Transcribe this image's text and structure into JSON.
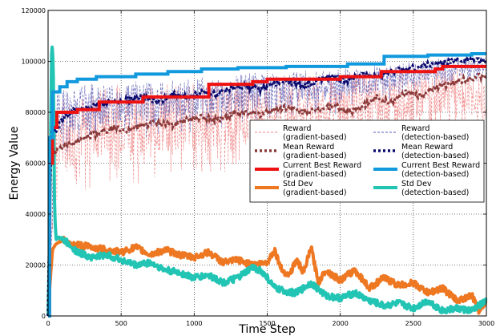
{
  "chart_data": {
    "type": "line",
    "title": "",
    "xlabel": "Time Step",
    "ylabel": "Energy Value",
    "xlim": [
      0,
      3000
    ],
    "ylim": [
      0,
      120000
    ],
    "xticks": [
      0,
      500,
      1000,
      1500,
      2000,
      2500,
      3000
    ],
    "yticks": [
      0,
      20000,
      40000,
      60000,
      80000,
      100000,
      120000
    ],
    "grid": true,
    "legend_position": "center-right",
    "series": [
      {
        "name": "Reward\n(gradient-based)",
        "color": "#f08080",
        "style": "dashed-noisy",
        "x": [
          0,
          50,
          100,
          200,
          300,
          400,
          500,
          600,
          700,
          800,
          900,
          1000,
          1100,
          1200,
          1300,
          1400,
          1500,
          1600,
          1700,
          1800,
          1900,
          2000,
          2100,
          2200,
          2300,
          2400,
          2500,
          2600,
          2700,
          2800,
          2900,
          3000
        ],
        "values": [
          0,
          72000,
          74000,
          76000,
          78000,
          79000,
          80000,
          80000,
          79000,
          80000,
          81000,
          81000,
          82000,
          82000,
          83000,
          83000,
          82000,
          84000,
          84000,
          85000,
          84000,
          84000,
          86000,
          87000,
          86000,
          88000,
          88000,
          89000,
          90000,
          90000,
          89000,
          88000
        ],
        "spread": [
          0,
          20000,
          20000,
          20000,
          20000,
          20000,
          20000,
          20000,
          20000,
          20000,
          20000,
          19000,
          19000,
          19000,
          18000,
          18000,
          18000,
          17000,
          17000,
          17000,
          16000,
          16000,
          16000,
          15000,
          15000,
          14000,
          14000,
          13000,
          12000,
          12000,
          12000,
          12000
        ]
      },
      {
        "name": "Reward\n(detection-based)",
        "color": "#5a5ab4",
        "style": "dashed-noisy",
        "x": [
          0,
          50,
          100,
          200,
          300,
          400,
          500,
          600,
          700,
          800,
          900,
          1000,
          1100,
          1200,
          1300,
          1400,
          1500,
          1600,
          1700,
          1800,
          1900,
          2000,
          2100,
          2200,
          2300,
          2400,
          2500,
          2600,
          2700,
          2800,
          2900,
          3000
        ],
        "values": [
          0,
          80000,
          82000,
          83000,
          84000,
          85000,
          86000,
          86000,
          85000,
          86000,
          87000,
          87000,
          88000,
          88000,
          89000,
          90000,
          89000,
          90000,
          91000,
          92000,
          91000,
          92000,
          93000,
          94000,
          95000,
          95000,
          96000,
          97000,
          98000,
          99000,
          99000,
          99000
        ],
        "spread": [
          0,
          14000,
          14000,
          13000,
          13000,
          12000,
          12000,
          12000,
          12000,
          11000,
          11000,
          11000,
          11000,
          10000,
          10000,
          10000,
          10000,
          10000,
          9000,
          9000,
          9000,
          9000,
          8000,
          8000,
          8000,
          7000,
          7000,
          6000,
          6000,
          5000,
          5000,
          5000
        ]
      },
      {
        "name": "Mean Reward\n(gradient-based)",
        "color": "#8b3a3a",
        "style": "dotted",
        "x": [
          0,
          10,
          20,
          30,
          50,
          80,
          150,
          250,
          350,
          450,
          550,
          650,
          750,
          850,
          950,
          1050,
          1150,
          1250,
          1350,
          1450,
          1550,
          1650,
          1750,
          1850,
          1950,
          2050,
          2150,
          2250,
          2350,
          2450,
          2550,
          2650,
          2750,
          2850,
          2950,
          3000
        ],
        "values": [
          0,
          40000,
          62000,
          66000,
          64000,
          66000,
          67000,
          70000,
          72000,
          74000,
          73000,
          75000,
          76000,
          75000,
          77000,
          78000,
          77000,
          79000,
          80000,
          79000,
          81000,
          82000,
          80000,
          81000,
          83000,
          80000,
          82000,
          86000,
          84000,
          88000,
          86000,
          90000,
          91000,
          93000,
          94000,
          94000
        ]
      },
      {
        "name": "Mean Reward\n(detection-based)",
        "color": "#0a0a6e",
        "style": "dotted",
        "x": [
          0,
          10,
          20,
          30,
          50,
          80,
          150,
          250,
          350,
          450,
          550,
          650,
          750,
          850,
          950,
          1050,
          1150,
          1250,
          1350,
          1450,
          1550,
          1650,
          1750,
          1850,
          1950,
          2050,
          2150,
          2250,
          2350,
          2450,
          2550,
          2650,
          2750,
          2850,
          2950,
          3000
        ],
        "values": [
          0,
          40000,
          70000,
          74000,
          72000,
          76000,
          80000,
          82000,
          83000,
          84000,
          85000,
          86000,
          84000,
          87000,
          86000,
          88000,
          87000,
          89000,
          90000,
          89000,
          91000,
          92000,
          90000,
          93000,
          94000,
          92000,
          95000,
          94000,
          96000,
          97000,
          98000,
          99000,
          100000,
          101000,
          100000,
          100000
        ]
      },
      {
        "name": "Current Best Reward\n(gradient-based)",
        "color": "#ee1111",
        "style": "step",
        "x": [
          0,
          10,
          30,
          60,
          200,
          350,
          650,
          1100,
          1400,
          1500,
          2000,
          2280,
          2650,
          2700,
          2800,
          3000
        ],
        "values": [
          0,
          60000,
          74000,
          80000,
          81000,
          84000,
          86000,
          91000,
          92000,
          93000,
          94000,
          96000,
          97000,
          98000,
          98000,
          98000
        ]
      },
      {
        "name": "Current Best Reward\n(detection-based)",
        "color": "#1199dd",
        "style": "step",
        "x": [
          0,
          10,
          30,
          80,
          130,
          200,
          330,
          600,
          820,
          1050,
          1300,
          1630,
          2050,
          2200,
          2250,
          2300,
          2600,
          2900,
          3000
        ],
        "values": [
          0,
          70000,
          88000,
          90000,
          92000,
          93000,
          94000,
          95000,
          96000,
          97000,
          97500,
          98000,
          99000,
          99000,
          99000,
          102000,
          102500,
          103000,
          103000
        ]
      },
      {
        "name": "Std Dev\n(gradient-based)",
        "color": "#ee7722",
        "style": "thick-noisy",
        "x": [
          0,
          10,
          30,
          50,
          100,
          150,
          200,
          300,
          400,
          500,
          600,
          700,
          800,
          900,
          1000,
          1100,
          1200,
          1300,
          1400,
          1500,
          1550,
          1600,
          1650,
          1700,
          1750,
          1800,
          1850,
          1900,
          2000,
          2100,
          2200,
          2300,
          2400,
          2500,
          2600,
          2700,
          2800,
          2900,
          2950,
          3000
        ],
        "values": [
          0,
          10000,
          26000,
          28000,
          30000,
          28000,
          28000,
          27000,
          26000,
          25000,
          27000,
          24000,
          26000,
          24000,
          23000,
          25000,
          21000,
          22000,
          20000,
          21000,
          26000,
          18000,
          16000,
          22000,
          17000,
          27000,
          13000,
          18000,
          14000,
          18000,
          11000,
          15000,
          12000,
          13000,
          9000,
          11000,
          6000,
          8000,
          2000,
          6000
        ]
      },
      {
        "name": "Std Dev\n(detection-based)",
        "color": "#22c4b4",
        "style": "thick-noisy",
        "x": [
          0,
          10,
          25,
          35,
          45,
          55,
          75,
          100,
          150,
          200,
          300,
          400,
          500,
          600,
          700,
          800,
          900,
          1000,
          1100,
          1200,
          1300,
          1400,
          1450,
          1500,
          1550,
          1600,
          1700,
          1800,
          1900,
          2000,
          2100,
          2200,
          2300,
          2400,
          2500,
          2600,
          2700,
          2800,
          2900,
          3000
        ],
        "values": [
          0,
          30000,
          108000,
          100000,
          40000,
          30000,
          31000,
          30000,
          28000,
          25000,
          23000,
          24000,
          22000,
          20000,
          21000,
          18000,
          17000,
          15000,
          16000,
          13000,
          15000,
          19000,
          18000,
          15000,
          11000,
          10000,
          9000,
          13000,
          8000,
          7000,
          9000,
          6000,
          4000,
          5000,
          3000,
          6000,
          2000,
          3000,
          2000,
          6000
        ]
      }
    ]
  }
}
